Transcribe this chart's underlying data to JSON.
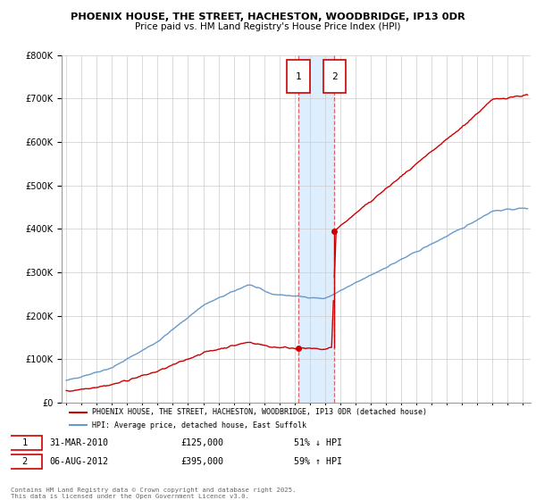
{
  "title1": "PHOENIX HOUSE, THE STREET, HACHESTON, WOODBRIDGE, IP13 0DR",
  "title2": "Price paid vs. HM Land Registry's House Price Index (HPI)",
  "legend_line1": "PHOENIX HOUSE, THE STREET, HACHESTON, WOODBRIDGE, IP13 0DR (detached house)",
  "legend_line2": "HPI: Average price, detached house, East Suffolk",
  "sale1_date": "31-MAR-2010",
  "sale1_price": 125000,
  "sale1_label": "£125,000",
  "sale1_hpi": "51% ↓ HPI",
  "sale2_date": "06-AUG-2012",
  "sale2_price": 395000,
  "sale2_label": "£395,000",
  "sale2_hpi": "59% ↑ HPI",
  "sale1_year": 2010.25,
  "sale2_year": 2012.6,
  "footnote": "Contains HM Land Registry data © Crown copyright and database right 2025.\nThis data is licensed under the Open Government Licence v3.0.",
  "ylim_max": 800000,
  "xlim_start": 1994.7,
  "xlim_end": 2025.5,
  "red_color": "#cc0000",
  "blue_color": "#6699cc",
  "shade_color": "#ddeeff",
  "grid_color": "#cccccc",
  "badge_color": "#cc0000"
}
